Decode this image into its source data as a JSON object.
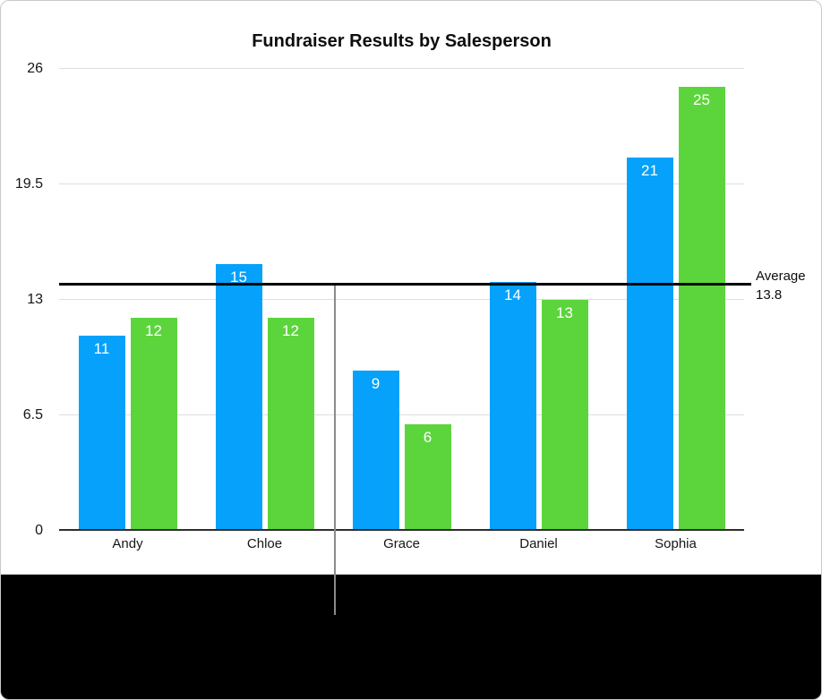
{
  "chart_data": {
    "type": "bar",
    "title": "Fundraiser Results by Salesperson",
    "categories": [
      "Andy",
      "Chloe",
      "Grace",
      "Daniel",
      "Sophia"
    ],
    "series": [
      {
        "name": "blue",
        "color": "#05a1fa",
        "values": [
          11,
          15,
          9,
          14,
          21
        ]
      },
      {
        "name": "green",
        "color": "#5cd53c",
        "values": [
          12,
          12,
          6,
          13,
          25
        ]
      }
    ],
    "xlabel": "",
    "ylabel": "",
    "ylim": [
      0,
      26
    ],
    "yticks": [
      "26",
      "19.5",
      "13",
      "6.5",
      "0"
    ],
    "grid": true,
    "legend_position": "none",
    "value_labels": {
      "position": "inside-top",
      "color": "#ffffff"
    },
    "average_line": {
      "value": 13.8,
      "label1": "Average",
      "label2": "13.8",
      "color": "#000000"
    }
  },
  "figure": {
    "background": "#ffffff",
    "caption_band_color": "#000000",
    "callout_line_color": "#8b8b8b",
    "gridline_color": "#dedede",
    "axis_color": "#2e2e2e"
  }
}
